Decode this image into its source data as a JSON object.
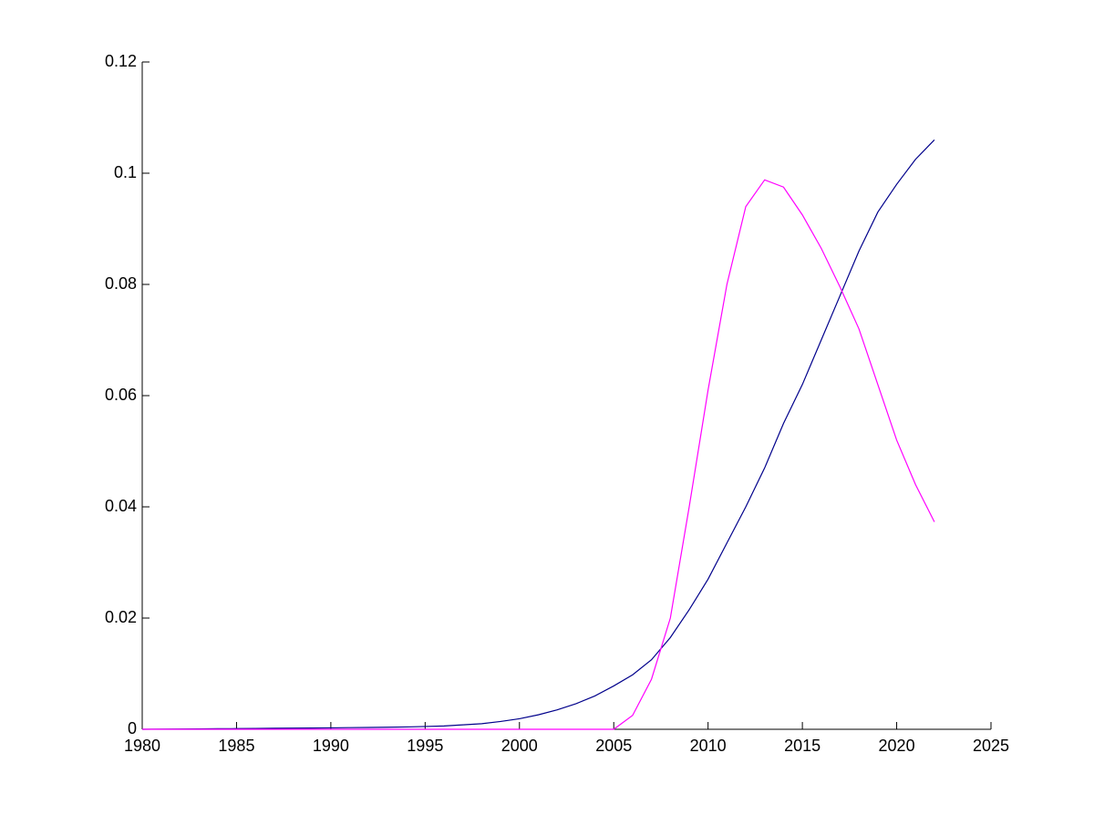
{
  "chart_data": {
    "type": "line",
    "x": [
      1980,
      1981,
      1982,
      1983,
      1984,
      1985,
      1986,
      1987,
      1988,
      1989,
      1990,
      1991,
      1992,
      1993,
      1994,
      1995,
      1996,
      1997,
      1998,
      1999,
      2000,
      2001,
      2002,
      2003,
      2004,
      2005,
      2006,
      2007,
      2008,
      2009,
      2010,
      2011,
      2012,
      2013,
      2014,
      2015,
      2016,
      2017,
      2018,
      2019,
      2020,
      2021,
      2022
    ],
    "series": [
      {
        "color": "#00008b",
        "values": [
          0,
          3e-05,
          5e-05,
          7e-05,
          0.0001,
          0.00012,
          0.00015,
          0.00018,
          0.0002,
          0.00023,
          0.00026,
          0.0003,
          0.00033,
          0.00037,
          0.00042,
          0.0005,
          0.0006,
          0.0008,
          0.001,
          0.0014,
          0.0019,
          0.0026,
          0.0035,
          0.0046,
          0.006,
          0.0078,
          0.0098,
          0.0125,
          0.0165,
          0.0215,
          0.027,
          0.0335,
          0.04,
          0.047,
          0.055,
          0.062,
          0.07,
          0.078,
          0.086,
          0.093,
          0.098,
          0.1025,
          0.106
        ]
      },
      {
        "color": "#ff00ff",
        "values": [
          0,
          0,
          0,
          0,
          0,
          0,
          0,
          0,
          0,
          0,
          0,
          0,
          0,
          0,
          0,
          0,
          0,
          0,
          0,
          0,
          0,
          0,
          0,
          0,
          0,
          0,
          0.0025,
          0.009,
          0.02,
          0.04,
          0.061,
          0.08,
          0.094,
          0.0988,
          0.0975,
          0.0925,
          0.0865,
          0.0795,
          0.072,
          0.062,
          0.052,
          0.044,
          0.0373
        ]
      }
    ],
    "xlim": [
      1980,
      2025
    ],
    "xticks": [
      1980,
      1985,
      1990,
      1995,
      2000,
      2005,
      2010,
      2015,
      2020,
      2025
    ],
    "ylim": [
      0,
      0.12
    ],
    "yticks": [
      0,
      0.02,
      0.04,
      0.06,
      0.08,
      0.1,
      0.12
    ]
  }
}
